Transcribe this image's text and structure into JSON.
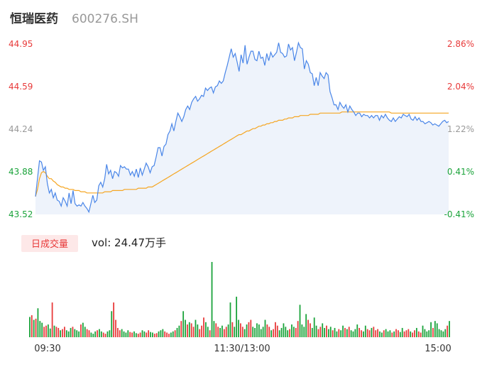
{
  "header": {
    "stock_name": "恒瑞医药",
    "stock_code": "600276.SH"
  },
  "volume_panel": {
    "tag": "日成交量",
    "vol_text": "vol: 24.47万手"
  },
  "colors": {
    "up": "#e83a3a",
    "down": "#1aa33a",
    "neutral": "#999999",
    "price_line": "#4a86e8",
    "avg_line": "#f5a623",
    "area": "#eef3fb"
  },
  "chart_data": [
    {
      "type": "line",
      "title": "",
      "series": [
        {
          "name": "",
          "values": [
            43.67,
            43.82,
            43.97,
            43.96,
            43.89,
            43.92,
            43.78,
            43.7,
            43.73,
            43.66,
            43.7,
            43.64,
            43.63,
            43.59,
            43.66,
            43.63,
            43.59,
            43.7,
            43.61,
            43.72,
            43.61,
            43.59,
            43.6,
            43.59,
            43.62,
            43.59,
            43.57,
            43.54,
            43.61,
            43.68,
            43.62,
            43.64,
            43.76,
            43.79,
            43.75,
            43.82,
            43.94,
            43.86,
            43.89,
            43.82,
            43.88,
            43.87,
            43.84,
            43.93,
            43.91,
            43.92,
            43.9,
            43.9,
            43.85,
            43.88,
            43.84,
            43.9,
            43.83,
            43.91,
            43.85,
            43.9,
            43.95,
            43.92,
            43.87,
            43.92,
            43.93,
            44.0,
            44.08,
            44.08,
            44.01,
            44.09,
            44.11,
            44.19,
            44.22,
            44.28,
            44.22,
            44.3,
            44.37,
            44.34,
            44.3,
            44.34,
            44.4,
            44.43,
            44.4,
            44.46,
            44.49,
            44.51,
            44.47,
            44.49,
            44.52,
            44.51,
            44.58,
            44.56,
            44.58,
            44.59,
            44.54,
            44.59,
            44.6,
            44.64,
            44.62,
            44.64,
            44.71,
            44.77,
            44.84,
            44.91,
            44.84,
            44.87,
            44.8,
            44.72,
            44.86,
            44.79,
            44.94,
            44.78,
            44.84,
            44.89,
            44.89,
            44.82,
            44.81,
            44.89,
            44.83,
            44.84,
            44.77,
            44.87,
            44.81,
            44.88,
            44.84,
            44.86,
            44.88,
            44.96,
            44.88,
            44.87,
            44.84,
            44.85,
            44.95,
            44.9,
            44.92,
            44.81,
            44.88,
            44.96,
            44.92,
            44.91,
            44.74,
            44.81,
            44.78,
            44.71,
            44.7,
            44.6,
            44.67,
            44.6,
            44.71,
            44.68,
            44.66,
            44.71,
            44.69,
            44.55,
            44.5,
            44.44,
            44.44,
            44.4,
            44.46,
            44.43,
            44.41,
            44.44,
            44.38,
            44.43,
            44.4,
            44.38,
            44.35,
            44.37,
            44.37,
            44.34,
            44.36,
            44.35,
            44.35,
            44.33,
            44.35,
            44.33,
            44.35,
            44.35,
            44.31,
            44.35,
            44.33,
            44.36,
            44.33,
            44.31,
            44.3,
            44.33,
            44.3,
            44.32,
            44.34,
            44.33,
            44.36,
            44.35,
            44.34,
            44.36,
            44.32,
            44.31,
            44.34,
            44.31,
            44.33,
            44.3,
            44.3,
            44.28,
            44.29,
            44.3,
            44.29,
            44.27,
            44.28,
            44.27,
            44.26,
            44.28,
            44.3,
            44.31,
            44.29,
            44.3
          ]
        },
        {
          "name": "",
          "values": [
            43.67,
            43.73,
            43.82,
            43.87,
            43.88,
            43.87,
            43.84,
            43.82,
            43.82,
            43.8,
            43.79,
            43.77,
            43.76,
            43.75,
            43.75,
            43.74,
            43.74,
            43.73,
            43.73,
            43.73,
            43.72,
            43.72,
            43.72,
            43.71,
            43.71,
            43.71,
            43.7,
            43.7,
            43.7,
            43.7,
            43.7,
            43.7,
            43.7,
            43.7,
            43.7,
            43.71,
            43.71,
            43.71,
            43.71,
            43.72,
            43.72,
            43.72,
            43.72,
            43.72,
            43.72,
            43.73,
            43.73,
            43.73,
            43.73,
            43.73,
            43.73,
            43.73,
            43.74,
            43.74,
            43.74,
            43.74,
            43.74,
            43.75,
            43.75,
            43.75,
            43.76,
            43.77,
            43.78,
            43.79,
            43.8,
            43.81,
            43.82,
            43.83,
            43.84,
            43.85,
            43.86,
            43.87,
            43.88,
            43.89,
            43.9,
            43.91,
            43.92,
            43.93,
            43.94,
            43.95,
            43.96,
            43.97,
            43.98,
            43.99,
            44.0,
            44.01,
            44.02,
            44.03,
            44.04,
            44.05,
            44.06,
            44.07,
            44.08,
            44.09,
            44.1,
            44.11,
            44.12,
            44.13,
            44.14,
            44.15,
            44.16,
            44.17,
            44.18,
            44.19,
            44.19,
            44.2,
            44.21,
            44.22,
            44.22,
            44.23,
            44.24,
            44.24,
            44.25,
            44.26,
            44.26,
            44.27,
            44.27,
            44.28,
            44.28,
            44.29,
            44.29,
            44.3,
            44.3,
            44.31,
            44.31,
            44.31,
            44.32,
            44.32,
            44.33,
            44.33,
            44.33,
            44.34,
            44.34,
            44.34,
            44.35,
            44.35,
            44.35,
            44.35,
            44.35,
            44.36,
            44.36,
            44.36,
            44.36,
            44.36,
            44.37,
            44.37,
            44.37,
            44.37,
            44.37,
            44.37,
            44.37,
            44.37,
            44.37,
            44.37,
            44.37,
            44.38,
            44.38,
            44.38,
            44.38,
            44.38,
            44.38,
            44.38,
            44.38,
            44.38,
            44.38,
            44.38,
            44.38,
            44.38,
            44.38,
            44.38,
            44.38,
            44.38,
            44.38,
            44.38,
            44.38,
            44.38,
            44.38,
            44.38,
            44.38,
            44.38,
            44.37,
            44.37,
            44.37,
            44.37,
            44.37,
            44.37,
            44.37,
            44.37,
            44.37,
            44.37,
            44.37,
            44.37,
            44.37,
            44.37,
            44.37,
            44.37,
            44.37,
            44.37,
            44.37,
            44.37,
            44.37,
            44.37,
            44.37,
            44.37,
            44.37,
            44.37,
            44.37,
            44.37,
            44.37,
            44.37
          ]
        }
      ],
      "y_ticks": [
        "44.95",
        "44.59",
        "44.24",
        "43.88",
        "43.52"
      ],
      "pct_ticks": [
        "2.86%",
        "2.04%",
        "1.22%",
        "0.41%",
        "-0.41%"
      ],
      "ylim": [
        43.52,
        44.95
      ],
      "x_ticks": [
        "09:30",
        "11:30/13:00",
        "15:00"
      ],
      "grid": false
    },
    {
      "type": "bar",
      "title": "",
      "values": [
        35,
        38,
        30,
        32,
        50,
        28,
        25,
        18,
        20,
        22,
        15,
        60,
        20,
        18,
        16,
        12,
        14,
        18,
        12,
        10,
        16,
        18,
        14,
        12,
        10,
        22,
        25,
        18,
        14,
        12,
        8,
        6,
        10,
        12,
        14,
        10,
        8,
        6,
        10,
        12,
        45,
        60,
        30,
        16,
        12,
        14,
        10,
        8,
        12,
        9,
        8,
        10,
        7,
        6,
        8,
        12,
        10,
        8,
        12,
        9,
        8,
        6,
        7,
        10,
        12,
        14,
        10,
        8,
        6,
        8,
        10,
        12,
        16,
        20,
        28,
        45,
        30,
        22,
        26,
        24,
        18,
        30,
        22,
        14,
        20,
        34,
        26,
        18,
        12,
        130,
        28,
        24,
        18,
        16,
        20,
        14,
        18,
        22,
        60,
        26,
        18,
        70,
        30,
        24,
        18,
        14,
        22,
        26,
        30,
        18,
        16,
        24,
        22,
        14,
        18,
        30,
        22,
        18,
        12,
        14,
        26,
        20,
        12,
        16,
        24,
        18,
        12,
        14,
        22,
        18,
        16,
        28,
        56,
        22,
        18,
        40,
        30,
        24,
        16,
        34,
        20,
        14,
        18,
        24,
        16,
        20,
        14,
        18,
        12,
        16,
        10,
        14,
        12,
        20,
        16,
        14,
        18,
        12,
        10,
        14,
        22,
        16,
        12,
        10,
        20,
        14,
        12,
        16,
        18,
        12,
        14,
        10,
        8,
        12,
        14,
        10,
        12,
        8,
        10,
        14,
        12,
        9,
        16,
        10,
        12,
        14,
        10,
        8,
        12,
        16,
        10,
        8,
        20,
        14,
        10,
        12,
        26,
        16,
        28,
        24,
        14,
        12,
        10,
        14,
        20,
        28
      ],
      "directions": "dududdduudduduuduudddudddudduudddudduuddduuuudddduudduudduudduuddduuudduddudduduudduuuddudduudduudduddduudduuddddddduuduuudddddudduudddduuddduudduddudduddududddduudduuduuudduddduduudduuuduuduuddddduddddddu",
      "units": "万手"
    }
  ]
}
